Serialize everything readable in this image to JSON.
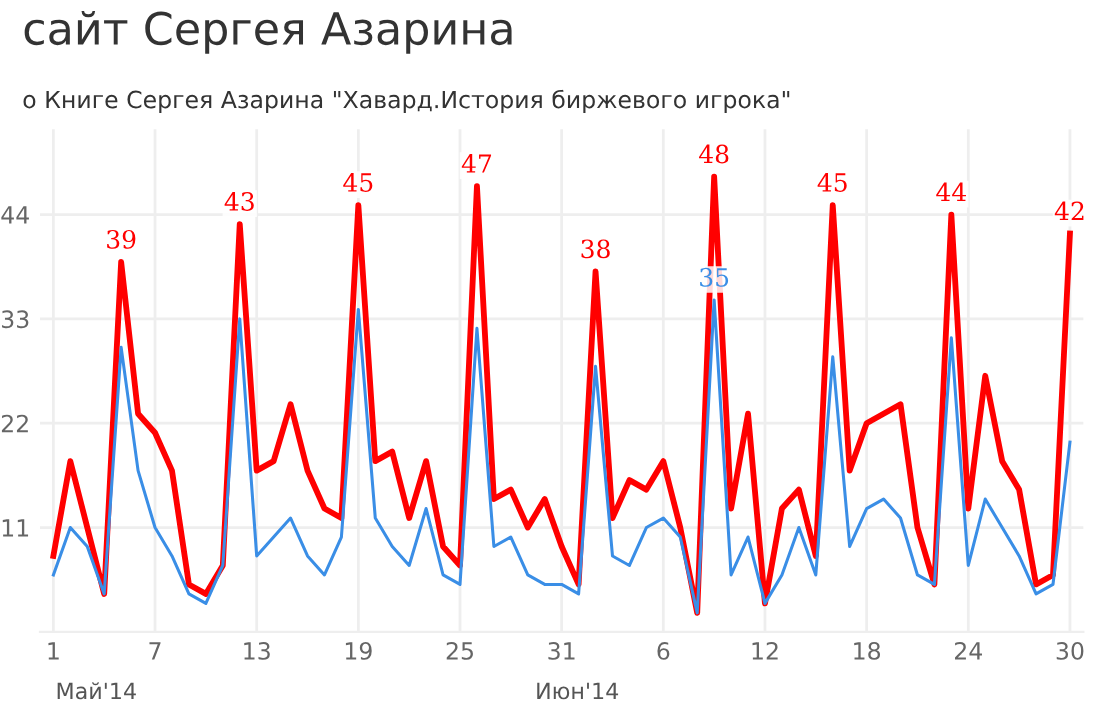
{
  "chart_data": {
    "type": "line",
    "title": "сайт Сергея Азарина",
    "subtitle": "о Книге Сергея Азарина \"Хавард.История биржевого игрока\"",
    "annotations": [
      "Май'14",
      "Июн'14"
    ],
    "x": [
      "2014-05-01",
      "2014-05-02",
      "2014-05-03",
      "2014-05-04",
      "2014-05-05",
      "2014-05-06",
      "2014-05-07",
      "2014-05-08",
      "2014-05-09",
      "2014-05-10",
      "2014-05-11",
      "2014-05-12",
      "2014-05-13",
      "2014-05-14",
      "2014-05-15",
      "2014-05-16",
      "2014-05-17",
      "2014-05-18",
      "2014-05-19",
      "2014-05-20",
      "2014-05-21",
      "2014-05-22",
      "2014-05-23",
      "2014-05-24",
      "2014-05-25",
      "2014-05-26",
      "2014-05-27",
      "2014-05-28",
      "2014-05-29",
      "2014-05-30",
      "2014-05-31",
      "2014-06-01",
      "2014-06-02",
      "2014-06-03",
      "2014-06-04",
      "2014-06-05",
      "2014-06-06",
      "2014-06-07",
      "2014-06-08",
      "2014-06-09",
      "2014-06-10",
      "2014-06-11",
      "2014-06-12",
      "2014-06-13",
      "2014-06-14",
      "2014-06-15",
      "2014-06-16",
      "2014-06-17",
      "2014-06-18",
      "2014-06-19",
      "2014-06-20",
      "2014-06-21",
      "2014-06-22",
      "2014-06-23",
      "2014-06-24",
      "2014-06-25",
      "2014-06-26",
      "2014-06-27",
      "2014-06-28",
      "2014-06-29",
      "2014-06-30"
    ],
    "series": [
      {
        "color": "#ff0000",
        "values": [
          8,
          18,
          11,
          4,
          39,
          23,
          21,
          17,
          5,
          4,
          7,
          43,
          17,
          18,
          24,
          17,
          13,
          12,
          45,
          18,
          19,
          12,
          18,
          9,
          7,
          47,
          14,
          15,
          11,
          14,
          9,
          5,
          38,
          12,
          16,
          15,
          18,
          11,
          2,
          48,
          13,
          23,
          3,
          13,
          15,
          8,
          45,
          17,
          22,
          23,
          24,
          11,
          5,
          44,
          13,
          27,
          18,
          15,
          5,
          6,
          42
        ],
        "value_labels": [
          null,
          null,
          null,
          null,
          "39",
          null,
          null,
          null,
          null,
          null,
          null,
          "43",
          null,
          null,
          null,
          null,
          null,
          null,
          "45",
          null,
          null,
          null,
          null,
          null,
          null,
          "47",
          null,
          null,
          null,
          null,
          null,
          null,
          "38",
          null,
          null,
          null,
          null,
          null,
          null,
          "48",
          null,
          null,
          null,
          null,
          null,
          null,
          "45",
          null,
          null,
          null,
          null,
          null,
          null,
          "44",
          null,
          null,
          null,
          null,
          null,
          null,
          "42"
        ]
      },
      {
        "color": "#3a8ee6",
        "values": [
          6,
          11,
          9,
          4,
          30,
          17,
          11,
          8,
          4,
          3,
          7,
          33,
          8,
          10,
          12,
          8,
          6,
          10,
          34,
          12,
          9,
          7,
          13,
          6,
          5,
          32,
          9,
          10,
          6,
          5,
          5,
          4,
          28,
          8,
          7,
          11,
          12,
          10,
          2,
          35,
          6,
          10,
          3,
          6,
          11,
          6,
          29,
          9,
          13,
          14,
          12,
          6,
          5,
          31,
          7,
          14,
          11,
          8,
          4,
          5,
          20
        ],
        "value_labels": [
          null,
          null,
          null,
          null,
          null,
          null,
          null,
          null,
          null,
          null,
          null,
          null,
          null,
          null,
          null,
          null,
          null,
          null,
          null,
          null,
          null,
          null,
          null,
          null,
          null,
          null,
          null,
          null,
          null,
          null,
          null,
          null,
          null,
          null,
          null,
          null,
          null,
          null,
          null,
          "35",
          null,
          null,
          null,
          null,
          null,
          null,
          null,
          null,
          null,
          null,
          null,
          null,
          null,
          null,
          null,
          null,
          null,
          null,
          null,
          null,
          null
        ]
      }
    ],
    "xlim": [
      "2014-04-30T05:00",
      "2014-06-30T19:00"
    ],
    "xticks": [
      {
        "value": "2014-05-01",
        "label": "1"
      },
      {
        "value": "2014-05-07",
        "label": "7"
      },
      {
        "value": "2014-05-13",
        "label": "13"
      },
      {
        "value": "2014-05-19",
        "label": "19"
      },
      {
        "value": "2014-05-25",
        "label": "25"
      },
      {
        "value": "2014-05-31",
        "label": "31"
      },
      {
        "value": "2014-06-06",
        "label": "6"
      },
      {
        "value": "2014-06-12",
        "label": "12"
      },
      {
        "value": "2014-06-18",
        "label": "18"
      },
      {
        "value": "2014-06-24",
        "label": "24"
      },
      {
        "value": "2014-06-30",
        "label": "30"
      }
    ],
    "ylim": [
      0,
      53
    ],
    "yticks": [
      11,
      22,
      33,
      44
    ],
    "grid": true
  }
}
